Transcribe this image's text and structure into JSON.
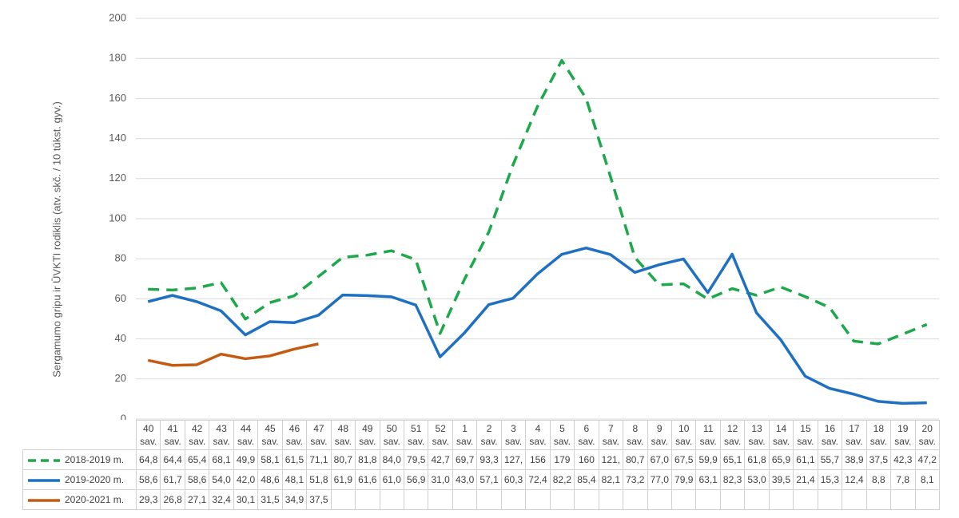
{
  "chart_data": {
    "type": "line",
    "y_label": "Sergamumo gripu ir ŪVKTI rodiklis (atv. skč. / 10 tūkst. gyv.)",
    "categories": [
      "40 sav.",
      "41 sav.",
      "42 sav.",
      "43 sav.",
      "44 sav.",
      "45 sav.",
      "46 sav.",
      "47 sav.",
      "48 sav.",
      "49 sav.",
      "50 sav.",
      "51 sav.",
      "52 sav.",
      "1 sav.",
      "2 sav.",
      "3 sav.",
      "4 sav.",
      "5 sav.",
      "6 sav.",
      "7 sav.",
      "8 sav.",
      "9 sav.",
      "10 sav.",
      "11 sav.",
      "12 sav.",
      "13 sav.",
      "14 sav.",
      "15 sav.",
      "16 sav.",
      "17 sav.",
      "18 sav.",
      "19 sav.",
      "20 sav."
    ],
    "ylim": [
      0,
      200
    ],
    "yticks": [
      0,
      20,
      40,
      60,
      80,
      100,
      120,
      140,
      160,
      180,
      200
    ],
    "grid": true,
    "series": [
      {
        "name": "2018-2019 m.",
        "color": "#1ea84c",
        "dashed": true,
        "values": [
          64.8,
          64.4,
          65.4,
          68.1,
          49.9,
          58.1,
          61.5,
          71.1,
          80.7,
          81.8,
          84.0,
          79.5,
          42.7,
          69.7,
          93.3,
          127,
          156,
          179,
          160,
          121,
          80.7,
          67.0,
          67.5,
          59.9,
          65.1,
          61.8,
          65.9,
          61.1,
          55.7,
          38.9,
          37.5,
          42.3,
          47.2
        ],
        "value_labels": [
          "64,8",
          "64,4",
          "65,4",
          "68,1",
          "49,9",
          "58,1",
          "61,5",
          "71,1",
          "80,7",
          "81,8",
          "84,0",
          "79,5",
          "42,7",
          "69,7",
          "93,3",
          "127,",
          "156",
          "179",
          "160",
          "121,",
          "80,7",
          "67,0",
          "67,5",
          "59,9",
          "65,1",
          "61,8",
          "65,9",
          "61,1",
          "55,7",
          "38,9",
          "37,5",
          "42,3",
          "47,2"
        ]
      },
      {
        "name": "2019-2020 m.",
        "color": "#1f70c1",
        "dashed": false,
        "values": [
          58.6,
          61.7,
          58.6,
          54.0,
          42.0,
          48.6,
          48.1,
          51.8,
          61.9,
          61.6,
          61.0,
          56.9,
          31.0,
          43.0,
          57.1,
          60.3,
          72.4,
          82.2,
          85.4,
          82.1,
          73.2,
          77.0,
          79.9,
          63.1,
          82.3,
          53.0,
          39.5,
          21.4,
          15.3,
          12.4,
          8.8,
          7.8,
          8.1
        ],
        "value_labels": [
          "58,6",
          "61,7",
          "58,6",
          "54,0",
          "42,0",
          "48,6",
          "48,1",
          "51,8",
          "61,9",
          "61,6",
          "61,0",
          "56,9",
          "31,0",
          "43,0",
          "57,1",
          "60,3",
          "72,4",
          "82,2",
          "85,4",
          "82,1",
          "73,2",
          "77,0",
          "79,9",
          "63,1",
          "82,3",
          "53,0",
          "39,5",
          "21,4",
          "15,3",
          "12,4",
          "8,8",
          "7,8",
          "8,1"
        ]
      },
      {
        "name": "2020-2021 m.",
        "color": "#c55a11",
        "dashed": false,
        "values": [
          29.3,
          26.8,
          27.1,
          32.4,
          30.1,
          31.5,
          34.9,
          37.5,
          null,
          null,
          null,
          null,
          null,
          null,
          null,
          null,
          null,
          null,
          null,
          null,
          null,
          null,
          null,
          null,
          null,
          null,
          null,
          null,
          null,
          null,
          null,
          null,
          null
        ],
        "value_labels": [
          "29,3",
          "26,8",
          "27,1",
          "32,4",
          "30,1",
          "31,5",
          "34,9",
          "37,5",
          null,
          null,
          null,
          null,
          null,
          null,
          null,
          null,
          null,
          null,
          null,
          null,
          null,
          null,
          null,
          null,
          null,
          null,
          null,
          null,
          null,
          null,
          null,
          null,
          null
        ]
      }
    ]
  }
}
